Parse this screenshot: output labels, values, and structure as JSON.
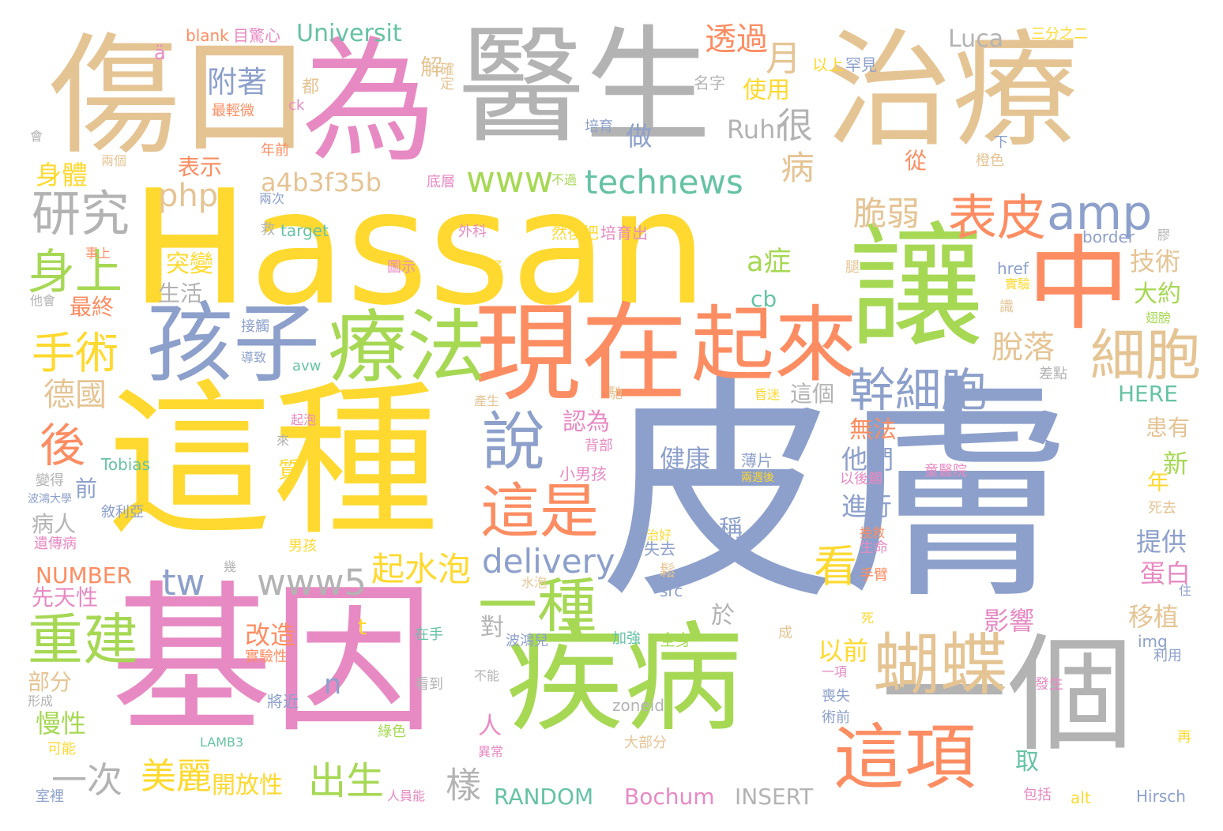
{
  "palette": {
    "gold": "#FFD92F",
    "tan": "#E5C494",
    "pink": "#E78AC3",
    "gray": "#B3B3B3",
    "blue": "#8DA0CB",
    "green": "#A6D854",
    "teal": "#66C2A5",
    "orange": "#FC8D62"
  },
  "words": [
    {
      "text": "皮膚",
      "color": "blue"
    },
    {
      "text": "Hassan",
      "color": "gold"
    },
    {
      "text": "這種",
      "color": "gold"
    },
    {
      "text": "基因",
      "color": "pink"
    },
    {
      "text": "治療",
      "color": "tan"
    },
    {
      "text": "醫生",
      "color": "gray"
    },
    {
      "text": "為",
      "color": "pink"
    },
    {
      "text": "傷口",
      "color": "tan"
    },
    {
      "text": "疾病",
      "color": "green"
    },
    {
      "text": "一個",
      "color": "gray"
    },
    {
      "text": "讓",
      "color": "green"
    },
    {
      "text": "中",
      "color": "orange"
    },
    {
      "text": "現在",
      "color": "orange"
    },
    {
      "text": "孩子",
      "color": "blue"
    },
    {
      "text": "療法",
      "color": "green"
    },
    {
      "text": "起來",
      "color": "orange"
    },
    {
      "text": "蝴蝶",
      "color": "tan"
    },
    {
      "text": "這項",
      "color": "orange"
    },
    {
      "text": "說",
      "color": "blue"
    },
    {
      "text": "這是",
      "color": "orange"
    },
    {
      "text": "一種",
      "color": "green"
    },
    {
      "text": "重建",
      "color": "green"
    },
    {
      "text": "細胞",
      "color": "tan"
    },
    {
      "text": "幹細胞",
      "color": "blue"
    },
    {
      "text": "amp",
      "color": "blue"
    },
    {
      "text": "表皮",
      "color": "orange"
    },
    {
      "text": "研究",
      "color": "gray"
    },
    {
      "text": "身上",
      "color": "green"
    },
    {
      "text": "手術",
      "color": "gold"
    },
    {
      "text": "後",
      "color": "orange"
    },
    {
      "text": "起水泡",
      "color": "gold"
    },
    {
      "text": "看",
      "color": "gold"
    },
    {
      "text": "technews",
      "color": "teal"
    },
    {
      "text": "delivery",
      "color": "blue"
    },
    {
      "text": "www5",
      "color": "gray"
    },
    {
      "text": "www",
      "color": "green"
    },
    {
      "text": "脆弱",
      "color": "tan"
    },
    {
      "text": "脫落",
      "color": "tan"
    },
    {
      "text": "月",
      "color": "tan"
    },
    {
      "text": "很",
      "color": "gray"
    },
    {
      "text": "附著",
      "color": "blue"
    },
    {
      "text": "透過",
      "color": "orange"
    },
    {
      "text": "Ruhr",
      "color": "gray"
    },
    {
      "text": "php",
      "color": "tan"
    },
    {
      "text": "a4b3f35b",
      "color": "tan"
    },
    {
      "text": "病",
      "color": "tan"
    },
    {
      "text": "a症",
      "color": "green"
    },
    {
      "text": "德國",
      "color": "tan"
    },
    {
      "text": "美麗",
      "color": "gold"
    },
    {
      "text": "出生",
      "color": "green"
    },
    {
      "text": "樣",
      "color": "gray"
    },
    {
      "text": "一次",
      "color": "gray"
    },
    {
      "text": "tw",
      "color": "blue"
    },
    {
      "text": "Universit",
      "color": "teal"
    },
    {
      "text": "Luca",
      "color": "gray"
    },
    {
      "text": "RANDOM",
      "color": "teal"
    },
    {
      "text": "Bochum",
      "color": "pink"
    },
    {
      "text": "INSERT",
      "color": "gray"
    },
    {
      "text": "NUMBER",
      "color": "orange"
    },
    {
      "text": "開放性",
      "color": "gold"
    },
    {
      "text": "身體",
      "color": "gold"
    },
    {
      "text": "表示",
      "color": "orange"
    },
    {
      "text": "使用",
      "color": "gold"
    },
    {
      "text": "做",
      "color": "blue"
    },
    {
      "text": "技術",
      "color": "tan"
    },
    {
      "text": "大約",
      "color": "green"
    },
    {
      "text": "突變",
      "color": "gold"
    },
    {
      "text": "生活",
      "color": "gray"
    },
    {
      "text": "最終",
      "color": "orange"
    },
    {
      "text": "cb",
      "color": "teal"
    },
    {
      "text": "健康",
      "color": "blue"
    },
    {
      "text": "他們",
      "color": "blue"
    },
    {
      "text": "無法",
      "color": "orange"
    },
    {
      "text": "進行",
      "color": "blue"
    },
    {
      "text": "這個",
      "color": "gray"
    },
    {
      "text": "認為",
      "color": "pink"
    },
    {
      "text": "患有",
      "color": "tan"
    },
    {
      "text": "新",
      "color": "green"
    },
    {
      "text": "HERE",
      "color": "teal"
    },
    {
      "text": "提供",
      "color": "blue"
    },
    {
      "text": "蛋白",
      "color": "pink"
    },
    {
      "text": "移植",
      "color": "tan"
    },
    {
      "text": "影響",
      "color": "pink"
    },
    {
      "text": "以前",
      "color": "gold"
    },
    {
      "text": "改造",
      "color": "orange"
    },
    {
      "text": "慢性",
      "color": "green"
    },
    {
      "text": "部分",
      "color": "tan"
    },
    {
      "text": "病人",
      "color": "gray"
    },
    {
      "text": "前",
      "color": "blue"
    },
    {
      "text": "先天性",
      "color": "pink"
    },
    {
      "text": "n",
      "color": "blue"
    },
    {
      "text": "t",
      "color": "gold"
    },
    {
      "text": "人",
      "color": "pink"
    },
    {
      "text": "取",
      "color": "teal"
    },
    {
      "text": "對",
      "color": "gray"
    },
    {
      "text": "於",
      "color": "gray"
    },
    {
      "text": "稱",
      "color": "blue"
    },
    {
      "text": "年",
      "color": "gold"
    },
    {
      "text": "質",
      "color": "gold"
    },
    {
      "text": "從",
      "color": "orange"
    },
    {
      "text": "解",
      "color": "tan"
    },
    {
      "text": "blank",
      "color": "orange"
    },
    {
      "text": "目驚心",
      "color": "pink"
    },
    {
      "text": "ä",
      "color": "pink"
    },
    {
      "text": "最輕微",
      "color": "orange"
    },
    {
      "text": "ck",
      "color": "pink"
    },
    {
      "text": "都",
      "color": "tan"
    },
    {
      "text": "會",
      "color": "gray"
    },
    {
      "text": "確定",
      "color": "tan"
    },
    {
      "text": "以上",
      "color": "gold"
    },
    {
      "text": "罕見",
      "color": "blue"
    },
    {
      "text": "三分之二",
      "color": "gold"
    },
    {
      "text": "名字",
      "color": "gray"
    },
    {
      "text": "培育",
      "color": "blue"
    },
    {
      "text": "下",
      "color": "blue"
    },
    {
      "text": "橙色",
      "color": "tan"
    },
    {
      "text": "年前",
      "color": "orange"
    },
    {
      "text": "兩個",
      "color": "tan"
    },
    {
      "text": "不過",
      "color": "green"
    },
    {
      "text": "底層",
      "color": "pink"
    },
    {
      "text": "兩次",
      "color": "blue"
    },
    {
      "text": "救",
      "color": "gray"
    },
    {
      "text": "target",
      "color": "teal"
    },
    {
      "text": "外科",
      "color": "pink"
    },
    {
      "text": "然後把",
      "color": "gold"
    },
    {
      "text": "培育出",
      "color": "pink"
    },
    {
      "text": "border",
      "color": "blue"
    },
    {
      "text": "膠",
      "color": "gray"
    },
    {
      "text": "事上",
      "color": "orange"
    },
    {
      "text": "圖示",
      "color": "pink"
    },
    {
      "text": "好",
      "color": "gold"
    },
    {
      "text": "腿",
      "color": "tan"
    },
    {
      "text": "href",
      "color": "blue"
    },
    {
      "text": "實驗",
      "color": "gold"
    },
    {
      "text": "他會",
      "color": "gray"
    },
    {
      "text": "接觸",
      "color": "blue"
    },
    {
      "text": "識",
      "color": "tan"
    },
    {
      "text": "翅膀",
      "color": "green"
    },
    {
      "text": "導致",
      "color": "blue"
    },
    {
      "text": "avw",
      "color": "teal"
    },
    {
      "text": "差點",
      "color": "gray"
    },
    {
      "text": "起泡",
      "color": "pink"
    },
    {
      "text": "昏迷",
      "color": "gold"
    },
    {
      "text": "產生",
      "color": "tan"
    },
    {
      "text": "馳",
      "color": "tan"
    },
    {
      "text": "來",
      "color": "gray"
    },
    {
      "text": "背部",
      "color": "pink"
    },
    {
      "text": "Tobias",
      "color": "teal"
    },
    {
      "text": "變得",
      "color": "gray"
    },
    {
      "text": "波鴻大學",
      "color": "blue"
    },
    {
      "text": "敘利亞",
      "color": "blue"
    },
    {
      "text": "遺傳病",
      "color": "pink"
    },
    {
      "text": "小男孩",
      "color": "pink"
    },
    {
      "text": "薄片",
      "color": "blue"
    },
    {
      "text": "兩週後",
      "color": "gold"
    },
    {
      "text": "以後觸",
      "color": "pink"
    },
    {
      "text": "童醫院",
      "color": "pink"
    },
    {
      "text": "死去",
      "color": "tan"
    },
    {
      "text": "男孩",
      "color": "gold"
    },
    {
      "text": "治好",
      "color": "gold"
    },
    {
      "text": "挽救",
      "color": "orange"
    },
    {
      "text": "生命",
      "color": "pink"
    },
    {
      "text": "失去",
      "color": "blue"
    },
    {
      "text": "幾",
      "color": "gray"
    },
    {
      "text": "鬆",
      "color": "tan"
    },
    {
      "text": "src",
      "color": "blue"
    },
    {
      "text": "手臂",
      "color": "orange"
    },
    {
      "text": "住",
      "color": "blue"
    },
    {
      "text": "水泡",
      "color": "tan"
    },
    {
      "text": "死",
      "color": "gold"
    },
    {
      "text": "在手",
      "color": "teal"
    },
    {
      "text": "加強",
      "color": "teal"
    },
    {
      "text": "全身",
      "color": "green"
    },
    {
      "text": "成",
      "color": "tan"
    },
    {
      "text": "img",
      "color": "blue"
    },
    {
      "text": "波鴻兒",
      "color": "blue"
    },
    {
      "text": "實驗性",
      "color": "orange"
    },
    {
      "text": "利用",
      "color": "blue"
    },
    {
      "text": "一項",
      "color": "pink"
    },
    {
      "text": "不能",
      "color": "gray"
    },
    {
      "text": "看到",
      "color": "gray"
    },
    {
      "text": "發生",
      "color": "pink"
    },
    {
      "text": "形成",
      "color": "gray"
    },
    {
      "text": "將近",
      "color": "blue"
    },
    {
      "text": "zoneid",
      "color": "gray"
    },
    {
      "text": "喪失",
      "color": "blue"
    },
    {
      "text": "術前",
      "color": "blue"
    },
    {
      "text": "綠色",
      "color": "green"
    },
    {
      "text": "LAMB3",
      "color": "teal"
    },
    {
      "text": "大部分",
      "color": "tan"
    },
    {
      "text": "再",
      "color": "gold"
    },
    {
      "text": "可能",
      "color": "gold"
    },
    {
      "text": "異常",
      "color": "pink"
    },
    {
      "text": "室裡",
      "color": "blue"
    },
    {
      "text": "人員能",
      "color": "pink"
    },
    {
      "text": "alt",
      "color": "gold"
    },
    {
      "text": "包括",
      "color": "pink"
    },
    {
      "text": "Hirsch",
      "color": "blue"
    }
  ]
}
